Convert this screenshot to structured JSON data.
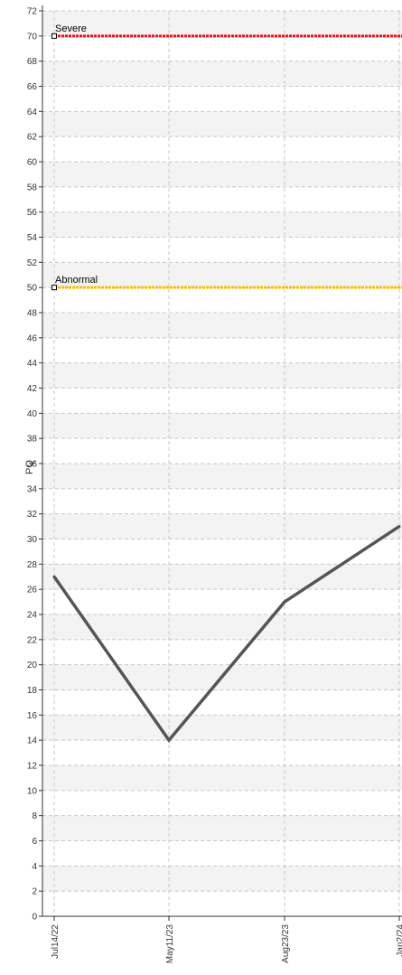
{
  "chart_data": {
    "type": "line",
    "ylabel": "PQ",
    "xlabel": "",
    "ylim": [
      0,
      72
    ],
    "y_ticks": [
      0,
      2,
      4,
      6,
      8,
      10,
      12,
      14,
      16,
      18,
      20,
      22,
      24,
      26,
      28,
      30,
      32,
      34,
      36,
      38,
      40,
      42,
      44,
      46,
      48,
      50,
      52,
      54,
      56,
      58,
      60,
      62,
      64,
      66,
      68,
      70,
      72
    ],
    "categories": [
      "Jul14/22",
      "May11/23",
      "Aug23/23",
      "Jan2/24"
    ],
    "series": [
      {
        "values": [
          27,
          14,
          25,
          31
        ],
        "color": "#555555"
      }
    ],
    "thresholds": [
      {
        "label": "Severe",
        "value": 70,
        "color": "#e8101c"
      },
      {
        "label": "Abnormal",
        "value": 50,
        "color": "#f2c200"
      }
    ],
    "grid": true,
    "grid_bands": true
  }
}
